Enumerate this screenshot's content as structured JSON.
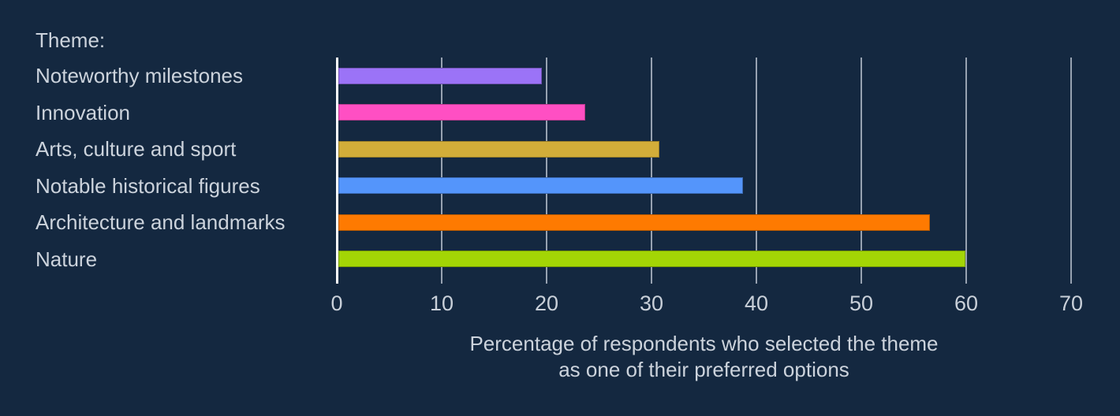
{
  "page": {
    "background_color": "#142840",
    "text_color": "#ccd3dc",
    "axis_line_color": "#ffffff",
    "gridline_color": "#97a2b1"
  },
  "chart_data": {
    "type": "bar",
    "orientation": "horizontal",
    "title": "Theme:",
    "categories": [
      "Noteworthy milestones",
      "Innovation",
      "Arts, culture and sport",
      "Notable historical figures",
      "Architecture and landmarks",
      "Nature"
    ],
    "values": [
      19.4,
      23.5,
      30.6,
      38.6,
      56.4,
      59.8
    ],
    "bar_colors": [
      "#9b73f7",
      "#ff4fc3",
      "#d2ad39",
      "#5495fb",
      "#fe7a01",
      "#a3d505"
    ],
    "xlabel_lines": [
      "Percentage of respondents who selected the theme",
      "as one of their preferred options"
    ],
    "xlabel": "Percentage of respondents who selected the theme as one of their preferred options",
    "ylabel": "",
    "xlim": [
      0,
      70
    ],
    "xticks": [
      0,
      10,
      20,
      30,
      40,
      50,
      60,
      70
    ],
    "grid": "vertical",
    "legend": "none"
  }
}
